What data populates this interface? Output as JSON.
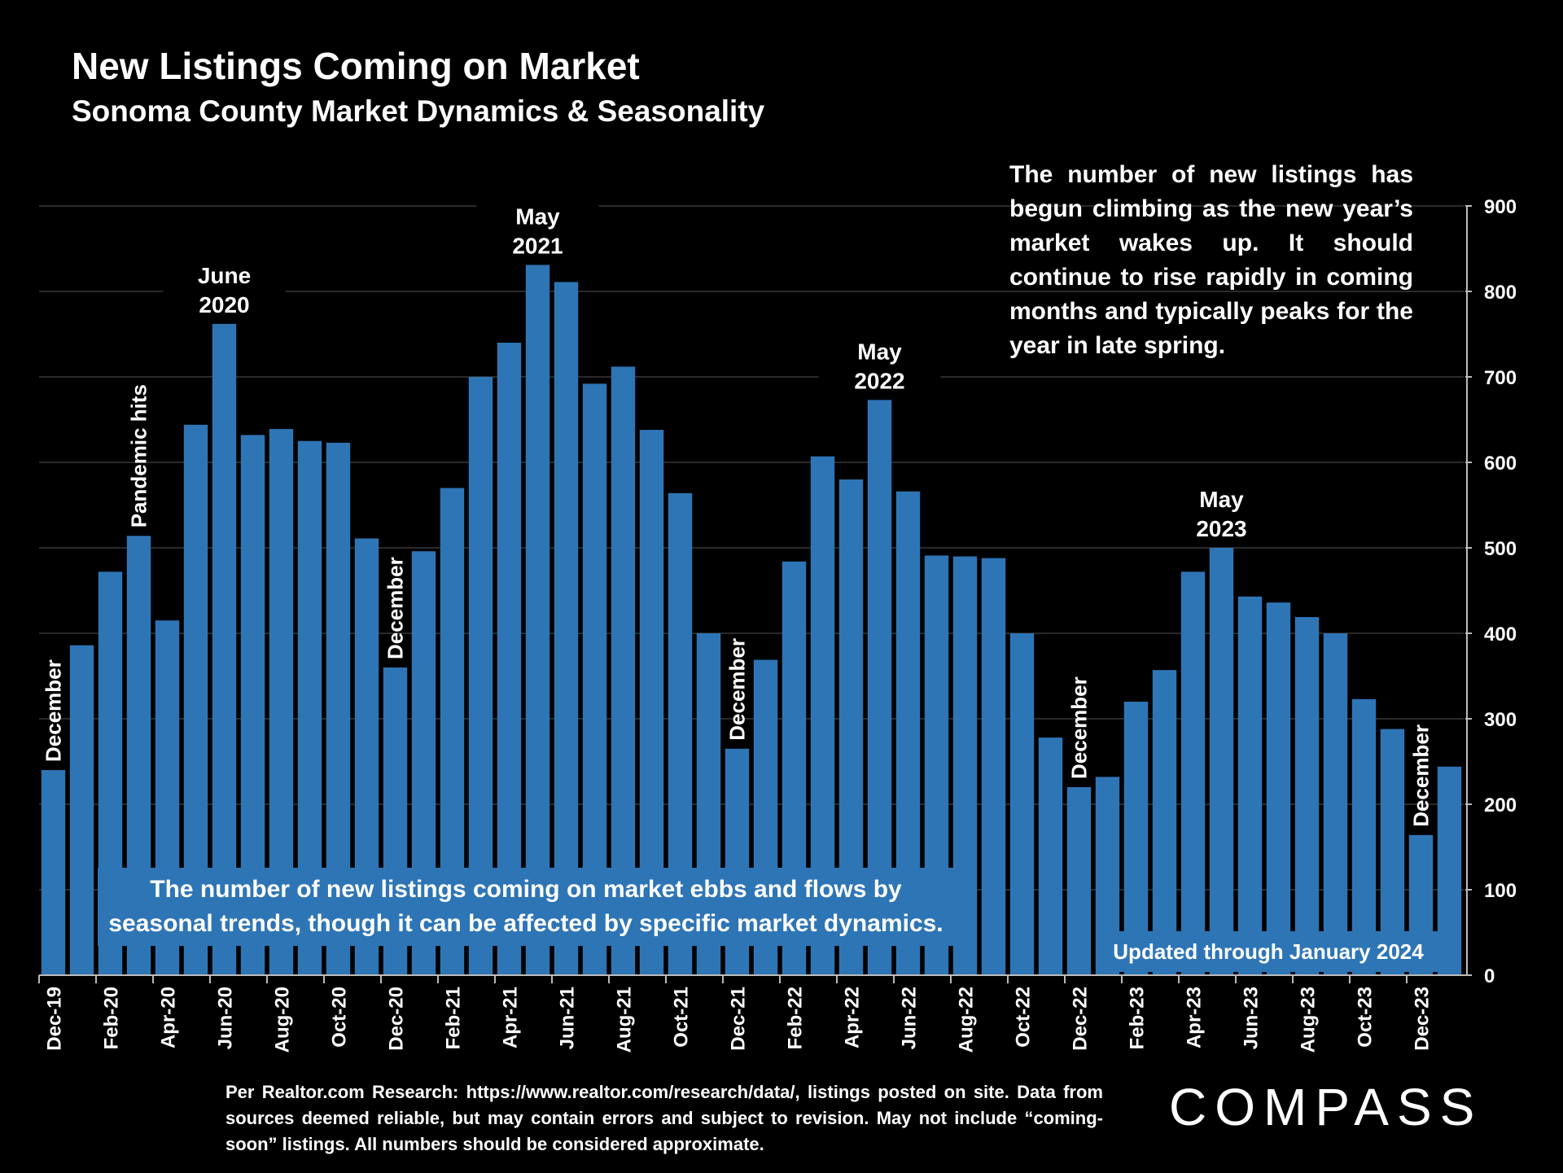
{
  "header": {
    "title": "New Listings Coming on Market",
    "subtitle": "Sonoma County Market Dynamics & Seasonality"
  },
  "notes": {
    "right": "The number of new listings has begun climbing as the new year’s market wakes up. It should continue to rise rapidly in coming months and typically peaks for the year in late spring.",
    "box_line1": "The number of new listings coming on market ebbs and flows by",
    "box_line2": "seasonal trends, though it can be affected by specific market dynamics.",
    "updated": "Updated through January 2024"
  },
  "footer": {
    "text": "Per Realtor.com Research:  https://www.realtor.com/research/data/, listings posted on site. Data from sources deemed reliable, but may contain errors and subject to revision. May not include “coming-soon” listings. All numbers should be considered approximate."
  },
  "logo": {
    "text": "COMPASS"
  },
  "colors": {
    "bar": "#2e75b6",
    "background": "#000000",
    "grid": "#555555",
    "text": "#ffffff"
  },
  "chart_data": {
    "type": "bar",
    "title": "New Listings Coming on Market",
    "xlabel": "",
    "ylabel": "",
    "ylim": [
      0,
      900
    ],
    "yticks": [
      0,
      100,
      200,
      300,
      400,
      500,
      600,
      700,
      800,
      900
    ],
    "grid": true,
    "y_axis_side": "right",
    "categories": [
      "Dec-19",
      "Jan-20",
      "Feb-20",
      "Mar-20",
      "Apr-20",
      "May-20",
      "Jun-20",
      "Jul-20",
      "Aug-20",
      "Sep-20",
      "Oct-20",
      "Nov-20",
      "Dec-20",
      "Jan-21",
      "Feb-21",
      "Mar-21",
      "Apr-21",
      "May-21",
      "Jun-21",
      "Jul-21",
      "Aug-21",
      "Sep-21",
      "Oct-21",
      "Nov-21",
      "Dec-21",
      "Jan-22",
      "Feb-22",
      "Mar-22",
      "Apr-22",
      "May-22",
      "Jun-22",
      "Jul-22",
      "Aug-22",
      "Sep-22",
      "Oct-22",
      "Nov-22",
      "Dec-22",
      "Jan-23",
      "Feb-23",
      "Mar-23",
      "Apr-23",
      "May-23",
      "Jun-23",
      "Jul-23",
      "Aug-23",
      "Sep-23",
      "Oct-23",
      "Nov-23",
      "Dec-23",
      "Jan-24"
    ],
    "tick_labels": [
      "Dec-19",
      "Feb-20",
      "Apr-20",
      "Jun-20",
      "Aug-20",
      "Oct-20",
      "Dec-20",
      "Feb-21",
      "Apr-21",
      "Jun-21",
      "Aug-21",
      "Oct-21",
      "Dec-21",
      "Feb-22",
      "Apr-22",
      "Jun-22",
      "Aug-22",
      "Oct-22",
      "Dec-22",
      "Feb-23",
      "Apr-23",
      "Jun-23",
      "Aug-23",
      "Oct-23",
      "Dec-23"
    ],
    "values": [
      240,
      386,
      472,
      514,
      415,
      644,
      762,
      632,
      639,
      625,
      623,
      511,
      360,
      496,
      570,
      700,
      740,
      831,
      811,
      692,
      712,
      638,
      564,
      400,
      265,
      369,
      484,
      607,
      580,
      673,
      566,
      491,
      490,
      488,
      400,
      278,
      220,
      232,
      320,
      357,
      472,
      500,
      443,
      436,
      419,
      400,
      323,
      288,
      164,
      244
    ],
    "annotations": [
      {
        "text": "December",
        "category": "Dec-19",
        "rotated": true
      },
      {
        "text": "Pandemic hits",
        "category": "Mar-20",
        "rotated": true
      },
      {
        "text": "June",
        "text2": "2020",
        "category": "Jun-20",
        "rotated": false
      },
      {
        "text": "December",
        "category": "Dec-20",
        "rotated": true
      },
      {
        "text": "May",
        "text2": "2021",
        "category": "May-21",
        "rotated": false
      },
      {
        "text": "December",
        "category": "Dec-21",
        "rotated": true
      },
      {
        "text": "May",
        "text2": "2022",
        "category": "May-22",
        "rotated": false
      },
      {
        "text": "December",
        "category": "Dec-22",
        "rotated": true
      },
      {
        "text": "May",
        "text2": "2023",
        "category": "May-23",
        "rotated": false
      },
      {
        "text": "December",
        "category": "Dec-23",
        "rotated": true
      }
    ]
  }
}
